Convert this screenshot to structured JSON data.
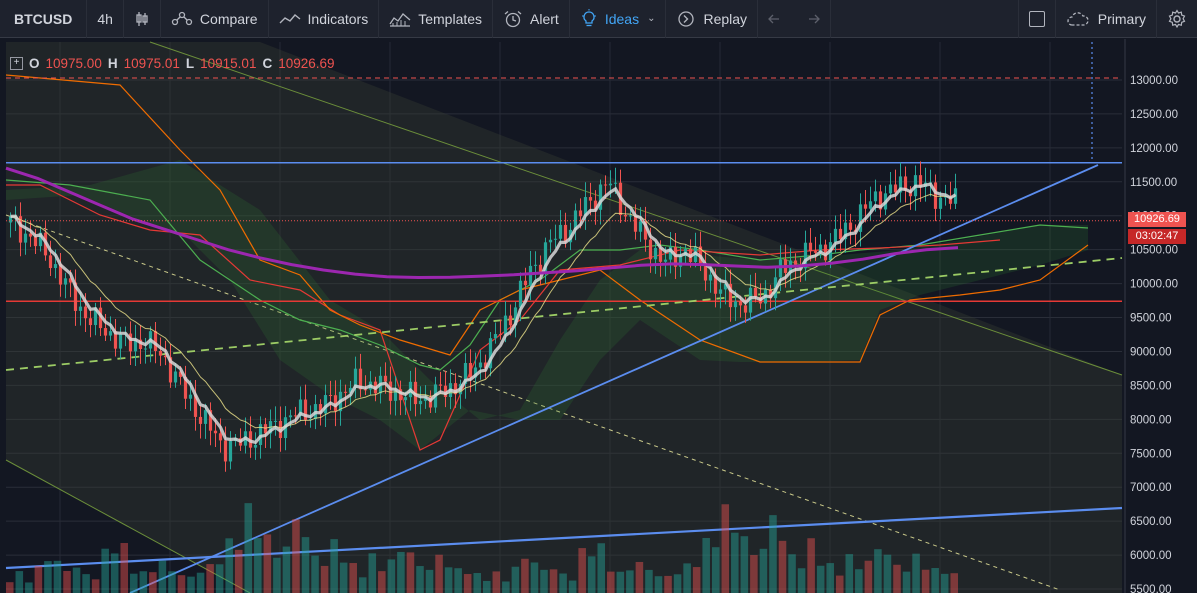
{
  "toolbar": {
    "symbol": "BTCUSD",
    "interval": "4h",
    "compare": "Compare",
    "indicators": "Indicators",
    "templates": "Templates",
    "alert": "Alert",
    "ideas": "Ideas",
    "replay": "Replay",
    "layout": "Primary"
  },
  "icons": {
    "bar_style": "candles-icon",
    "compare": "compare-icon",
    "indicators": "indicators-icon",
    "templates": "templates-icon",
    "alert": "alarm-clock-icon",
    "ideas": "lightbulb-icon",
    "replay": "replay-icon",
    "undo": "undo-icon",
    "redo": "redo-icon",
    "fullscreen": "fullscreen-icon",
    "cloud": "cloud-icon",
    "settings": "gear-icon"
  },
  "legend": {
    "o_label": "O",
    "o_value": "10975.00",
    "h_label": "H",
    "h_value": "10975.01",
    "l_label": "L",
    "l_value": "10915.01",
    "c_label": "C",
    "c_value": "10926.69"
  },
  "price_tags": {
    "last": "10926.69",
    "countdown": "03:02:47"
  },
  "colors": {
    "background": "#131722",
    "up": "#26a69a",
    "down": "#ef5350",
    "sma_purple": "#9c27b0",
    "trend_blue": "#5b8def",
    "ema_white": "#d8d8d8",
    "ichimoku_lead_green": "#4caf50",
    "ichimoku_lead_red": "#e53935",
    "ichimoku_base_orange": "#ef6c00",
    "ema_yellow": "#f0e68c",
    "dashed_green": "#9ccc65"
  },
  "chart_data": {
    "type": "candlestick",
    "y_axis": {
      "ticks": [
        "13000.00",
        "12500.00",
        "12000.00",
        "11500.00",
        "11000.00",
        "10500.00",
        "10000.00",
        "9500.00",
        "9000.00",
        "8500.00",
        "8000.00",
        "7500.00",
        "7000.00",
        "6500.00",
        "6000.00",
        "5500.00"
      ],
      "range": [
        5500,
        13300
      ],
      "position": "right"
    },
    "last_price": 10926.69,
    "horizontal_lines": [
      {
        "price": 11780,
        "color": "#5b8def",
        "style": "solid"
      },
      {
        "price": 13030,
        "color": "#ef5350",
        "style": "dashed"
      },
      {
        "price": 9740,
        "color": "#e53935",
        "style": "solid"
      }
    ],
    "price_path": [
      10900,
      10700,
      10400,
      9900,
      9500,
      9300,
      9100,
      9150,
      8900,
      8400,
      8000,
      7600,
      7650,
      7800,
      7950,
      8100,
      8150,
      8350,
      8550,
      8500,
      8400,
      8300,
      8350,
      8500,
      8700,
      9100,
      9600,
      10200,
      10600,
      10850,
      11200,
      11500,
      11000,
      10600,
      10300,
      10500,
      10200,
      9800,
      9700,
      9800,
      10200,
      10400,
      10500,
      10700,
      11000,
      11300,
      11400,
      11500,
      11300,
      11200
    ],
    "sma_long_path": [
      11700,
      11550,
      11350,
      11150,
      10950,
      10800,
      10650,
      10500,
      10380,
      10280,
      10200,
      10140,
      10100,
      10090,
      10095,
      10110,
      10130,
      10160,
      10190,
      10230,
      10270,
      10290,
      10280,
      10260,
      10240,
      10260,
      10300,
      10360,
      10440,
      10500,
      10530
    ],
    "volume_heights": [
      18,
      22,
      15,
      28,
      40,
      35,
      25,
      30,
      20,
      18,
      45,
      60,
      50,
      30,
      22,
      28,
      34,
      26,
      20,
      18,
      25,
      30,
      40,
      55,
      70,
      90,
      80,
      60,
      45,
      50,
      85,
      65,
      40,
      35,
      55,
      45,
      30,
      25,
      40,
      30,
      35,
      50,
      45,
      30,
      28,
      40,
      35,
      25,
      30,
      20
    ]
  }
}
